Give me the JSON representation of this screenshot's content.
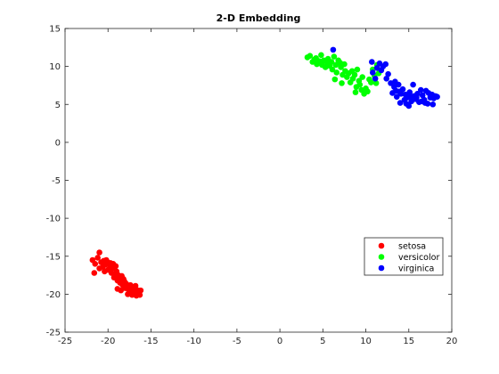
{
  "chart_data": {
    "type": "scatter",
    "title": "2-D Embedding",
    "xlabel": "",
    "ylabel": "",
    "xlim": [
      -25,
      20
    ],
    "ylim": [
      -25,
      15
    ],
    "xticks": [
      -25,
      -20,
      -15,
      -10,
      -5,
      0,
      5,
      10,
      15,
      20
    ],
    "yticks": [
      -25,
      -20,
      -15,
      -10,
      -5,
      0,
      5,
      10,
      15
    ],
    "grid": false,
    "legend": {
      "placement": "bottom-right"
    },
    "series": [
      {
        "name": "setosa",
        "color": "#ff0000",
        "points": [
          [
            -21.6,
            -17.2
          ],
          [
            -21.8,
            -15.5
          ],
          [
            -21.5,
            -16.0
          ],
          [
            -21.2,
            -15.2
          ],
          [
            -21.0,
            -14.5
          ],
          [
            -21.0,
            -16.6
          ],
          [
            -20.8,
            -15.8
          ],
          [
            -20.6,
            -16.4
          ],
          [
            -20.5,
            -15.6
          ],
          [
            -20.3,
            -16.1
          ],
          [
            -20.2,
            -15.5
          ],
          [
            -20.0,
            -16.8
          ],
          [
            -20.0,
            -15.8
          ],
          [
            -19.8,
            -16.2
          ],
          [
            -19.7,
            -15.9
          ],
          [
            -19.6,
            -17.2
          ],
          [
            -19.5,
            -16.6
          ],
          [
            -19.4,
            -16.0
          ],
          [
            -19.3,
            -17.8
          ],
          [
            -19.1,
            -16.3
          ],
          [
            -19.0,
            -17.0
          ],
          [
            -18.9,
            -18.2
          ],
          [
            -18.8,
            -17.5
          ],
          [
            -18.7,
            -17.9
          ],
          [
            -18.6,
            -18.5
          ],
          [
            -18.5,
            -19.5
          ],
          [
            -18.4,
            -17.6
          ],
          [
            -18.3,
            -18.8
          ],
          [
            -18.2,
            -18.0
          ],
          [
            -18.0,
            -19.2
          ],
          [
            -17.9,
            -18.6
          ],
          [
            -17.8,
            -19.0
          ],
          [
            -17.7,
            -20.0
          ],
          [
            -17.6,
            -19.4
          ],
          [
            -17.4,
            -18.8
          ],
          [
            -17.3,
            -19.7
          ],
          [
            -17.2,
            -20.1
          ],
          [
            -17.1,
            -19.1
          ],
          [
            -16.9,
            -19.6
          ],
          [
            -16.8,
            -18.9
          ],
          [
            -16.7,
            -20.2
          ],
          [
            -16.6,
            -19.8
          ],
          [
            -16.5,
            -19.5
          ],
          [
            -16.3,
            -20.1
          ],
          [
            -16.2,
            -19.5
          ],
          [
            -18.1,
            -18.3
          ],
          [
            -19.2,
            -17.4
          ],
          [
            -20.4,
            -17.0
          ],
          [
            -17.5,
            -19.0
          ],
          [
            -18.9,
            -19.3
          ]
        ]
      },
      {
        "name": "versicolor",
        "color": "#00ff00",
        "points": [
          [
            3.2,
            11.2
          ],
          [
            3.5,
            11.4
          ],
          [
            3.8,
            10.6
          ],
          [
            4.0,
            10.9
          ],
          [
            4.2,
            11.1
          ],
          [
            4.3,
            10.3
          ],
          [
            4.6,
            10.7
          ],
          [
            4.8,
            11.5
          ],
          [
            4.9,
            10.2
          ],
          [
            5.1,
            10.8
          ],
          [
            5.3,
            9.9
          ],
          [
            5.5,
            10.5
          ],
          [
            5.6,
            11.0
          ],
          [
            5.8,
            10.1
          ],
          [
            6.0,
            10.6
          ],
          [
            6.1,
            9.6
          ],
          [
            6.3,
            11.3
          ],
          [
            6.5,
            10.2
          ],
          [
            6.6,
            9.2
          ],
          [
            6.8,
            10.8
          ],
          [
            7.0,
            10.5
          ],
          [
            7.1,
            9.9
          ],
          [
            7.3,
            8.9
          ],
          [
            7.5,
            10.3
          ],
          [
            7.6,
            9.4
          ],
          [
            7.8,
            8.6
          ],
          [
            8.0,
            9.1
          ],
          [
            8.2,
            7.9
          ],
          [
            8.4,
            9.4
          ],
          [
            8.5,
            8.4
          ],
          [
            8.7,
            8.9
          ],
          [
            8.9,
            7.3
          ],
          [
            9.0,
            9.6
          ],
          [
            9.2,
            8.1
          ],
          [
            9.3,
            7.6
          ],
          [
            9.5,
            6.9
          ],
          [
            9.6,
            8.6
          ],
          [
            9.8,
            6.4
          ],
          [
            10.0,
            7.1
          ],
          [
            10.2,
            6.7
          ],
          [
            10.4,
            8.3
          ],
          [
            10.6,
            7.9
          ],
          [
            10.8,
            9.6
          ],
          [
            11.0,
            8.8
          ],
          [
            11.2,
            7.8
          ],
          [
            11.3,
            10.2
          ],
          [
            11.5,
            9.1
          ],
          [
            7.2,
            7.8
          ],
          [
            6.4,
            8.3
          ],
          [
            8.8,
            6.6
          ]
        ]
      },
      {
        "name": "virginica",
        "color": "#0000ff",
        "points": [
          [
            6.2,
            12.2
          ],
          [
            10.7,
            10.6
          ],
          [
            10.8,
            9.2
          ],
          [
            11.1,
            8.4
          ],
          [
            11.3,
            9.8
          ],
          [
            11.6,
            10.4
          ],
          [
            11.8,
            9.5
          ],
          [
            12.0,
            10.0
          ],
          [
            12.3,
            10.3
          ],
          [
            12.6,
            9.0
          ],
          [
            12.9,
            7.8
          ],
          [
            13.1,
            6.5
          ],
          [
            13.3,
            7.3
          ],
          [
            13.5,
            6.8
          ],
          [
            13.6,
            6.0
          ],
          [
            13.8,
            7.6
          ],
          [
            14.0,
            5.2
          ],
          [
            14.1,
            6.4
          ],
          [
            14.3,
            7.0
          ],
          [
            14.5,
            5.6
          ],
          [
            14.6,
            6.3
          ],
          [
            14.8,
            5.9
          ],
          [
            15.0,
            4.8
          ],
          [
            15.1,
            6.6
          ],
          [
            15.3,
            5.4
          ],
          [
            15.5,
            7.6
          ],
          [
            15.6,
            6.1
          ],
          [
            15.8,
            5.7
          ],
          [
            16.0,
            6.4
          ],
          [
            16.2,
            5.3
          ],
          [
            16.4,
            6.9
          ],
          [
            16.6,
            6.2
          ],
          [
            16.8,
            5.6
          ],
          [
            17.0,
            6.8
          ],
          [
            17.2,
            5.1
          ],
          [
            17.3,
            6.5
          ],
          [
            17.5,
            5.9
          ],
          [
            17.7,
            6.3
          ],
          [
            17.9,
            5.8
          ],
          [
            18.1,
            6.1
          ],
          [
            18.3,
            6.0
          ],
          [
            16.9,
            5.2
          ],
          [
            15.9,
            5.9
          ],
          [
            14.7,
            5.1
          ],
          [
            13.9,
            6.7
          ],
          [
            12.4,
            8.4
          ],
          [
            13.4,
            8.0
          ],
          [
            17.8,
            5.0
          ],
          [
            15.2,
            6.0
          ],
          [
            16.5,
            5.4
          ]
        ]
      }
    ]
  }
}
